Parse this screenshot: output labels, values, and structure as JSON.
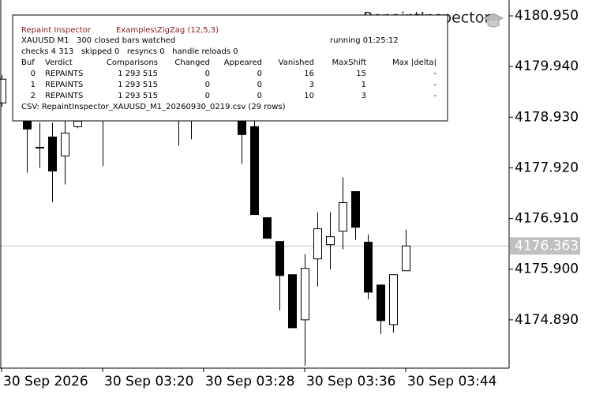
{
  "chart_data": {
    "type": "candlestick",
    "categories": [
      "30 Sep 2026",
      null,
      null,
      null,
      null,
      null,
      null,
      null,
      "30 Sep 03:20",
      null,
      null,
      null,
      null,
      null,
      null,
      null,
      "30 Sep 03:28",
      null,
      null,
      null,
      null,
      null,
      null,
      null,
      "30 Sep 03:36",
      null,
      null,
      null,
      null,
      null,
      null,
      null,
      "30 Sep 03:44"
    ],
    "open": [
      4179.214,
      null,
      4178.898,
      4178.33,
      4178.535,
      4178.157,
      4178.741,
      null,
      4179.056,
      null,
      null,
      null,
      null,
      null,
      4179.056,
      4178.977,
      null,
      null,
      null,
      4178.898,
      4178.741,
      4176.926,
      4176.452,
      4175.79,
      4174.89,
      4176.105,
      4176.389,
      4176.658,
      4177.447,
      4176.437,
      4175.584,
      4174.795,
      4175.868
    ],
    "high": [
      4179.766,
      null,
      4179.056,
      4178.82,
      4178.82,
      4178.898,
      4178.977,
      null,
      4179.135,
      null,
      null,
      null,
      null,
      null,
      4179.214,
      4179.214,
      null,
      null,
      null,
      4179.056,
      4178.851,
      4176.926,
      4176.452,
      4175.79,
      4176.2,
      4177.036,
      4177.036,
      4177.731,
      4177.447,
      4176.594,
      4175.584,
      4175.79,
      4176.689
    ],
    "low": [
      4179.135,
      null,
      4177.825,
      4177.92,
      4177.241,
      4177.589,
      4178.709,
      null,
      4177.952,
      null,
      null,
      null,
      null,
      null,
      4178.362,
      4178.488,
      null,
      null,
      null,
      4177.999,
      4176.989,
      4176.516,
      4175.079,
      4174.732,
      4173.975,
      4175.553,
      4175.9,
      4176.295,
      4176.484,
      4175.3,
      4174.606,
      4174.638,
      4175.868
    ],
    "close": [
      4179.688,
      null,
      4178.693,
      4178.33,
      4177.857,
      4178.614,
      4178.851,
      null,
      4178.898,
      null,
      null,
      null,
      null,
      null,
      4178.898,
      4179.056,
      null,
      null,
      null,
      4178.583,
      4176.989,
      4176.516,
      4175.774,
      4174.732,
      4175.916,
      4176.705,
      4176.547,
      4177.226,
      4176.736,
      4175.442,
      4174.874,
      4175.79,
      4176.363
    ],
    "up_color": "#ffffff",
    "down_color": "#000000",
    "ylim": [
      4173.927,
      4181.266
    ],
    "yticks": [
      {
        "value": 4180.95,
        "label": "4180.950"
      },
      {
        "value": 4179.94,
        "label": "4179.940"
      },
      {
        "value": 4178.93,
        "label": "4178.930"
      },
      {
        "value": 4177.92,
        "label": "4177.920"
      },
      {
        "value": 4176.91,
        "label": "4176.910"
      },
      {
        "value": 4175.9,
        "label": "4175.900"
      },
      {
        "value": 4174.89,
        "label": "4174.890"
      }
    ],
    "current_price": 4176.363,
    "watermark": "RepaintInspector"
  },
  "panel": {
    "title": "Repaint Inspector",
    "indicator": "Examples\\ZigZag (12,5,3)",
    "symbol_line": "XAUUSD M1   300 closed bars watched",
    "running": "running 01:25:12",
    "status": "checks 4 313   skipped 0   resyncs 0   handle reloads 0",
    "table": {
      "header": [
        "Buf",
        "Verdict",
        "Comparisons",
        "Changed",
        "Appeared",
        "Vanished",
        "MaxShift",
        "Max |delta|"
      ],
      "rows": [
        [
          "0",
          "REPAINTS",
          "1 293 515",
          "0",
          "0",
          "16",
          "15",
          "-"
        ],
        [
          "1",
          "REPAINTS",
          "1 293 515",
          "0",
          "0",
          "3",
          "1",
          "-"
        ],
        [
          "2",
          "REPAINTS",
          "1 293 515",
          "0",
          "0",
          "10",
          "3",
          "-"
        ]
      ]
    },
    "csv": "CSV: RepaintInspector_XAUUSD_M1_20260930_0219.csv (29 rows)"
  }
}
